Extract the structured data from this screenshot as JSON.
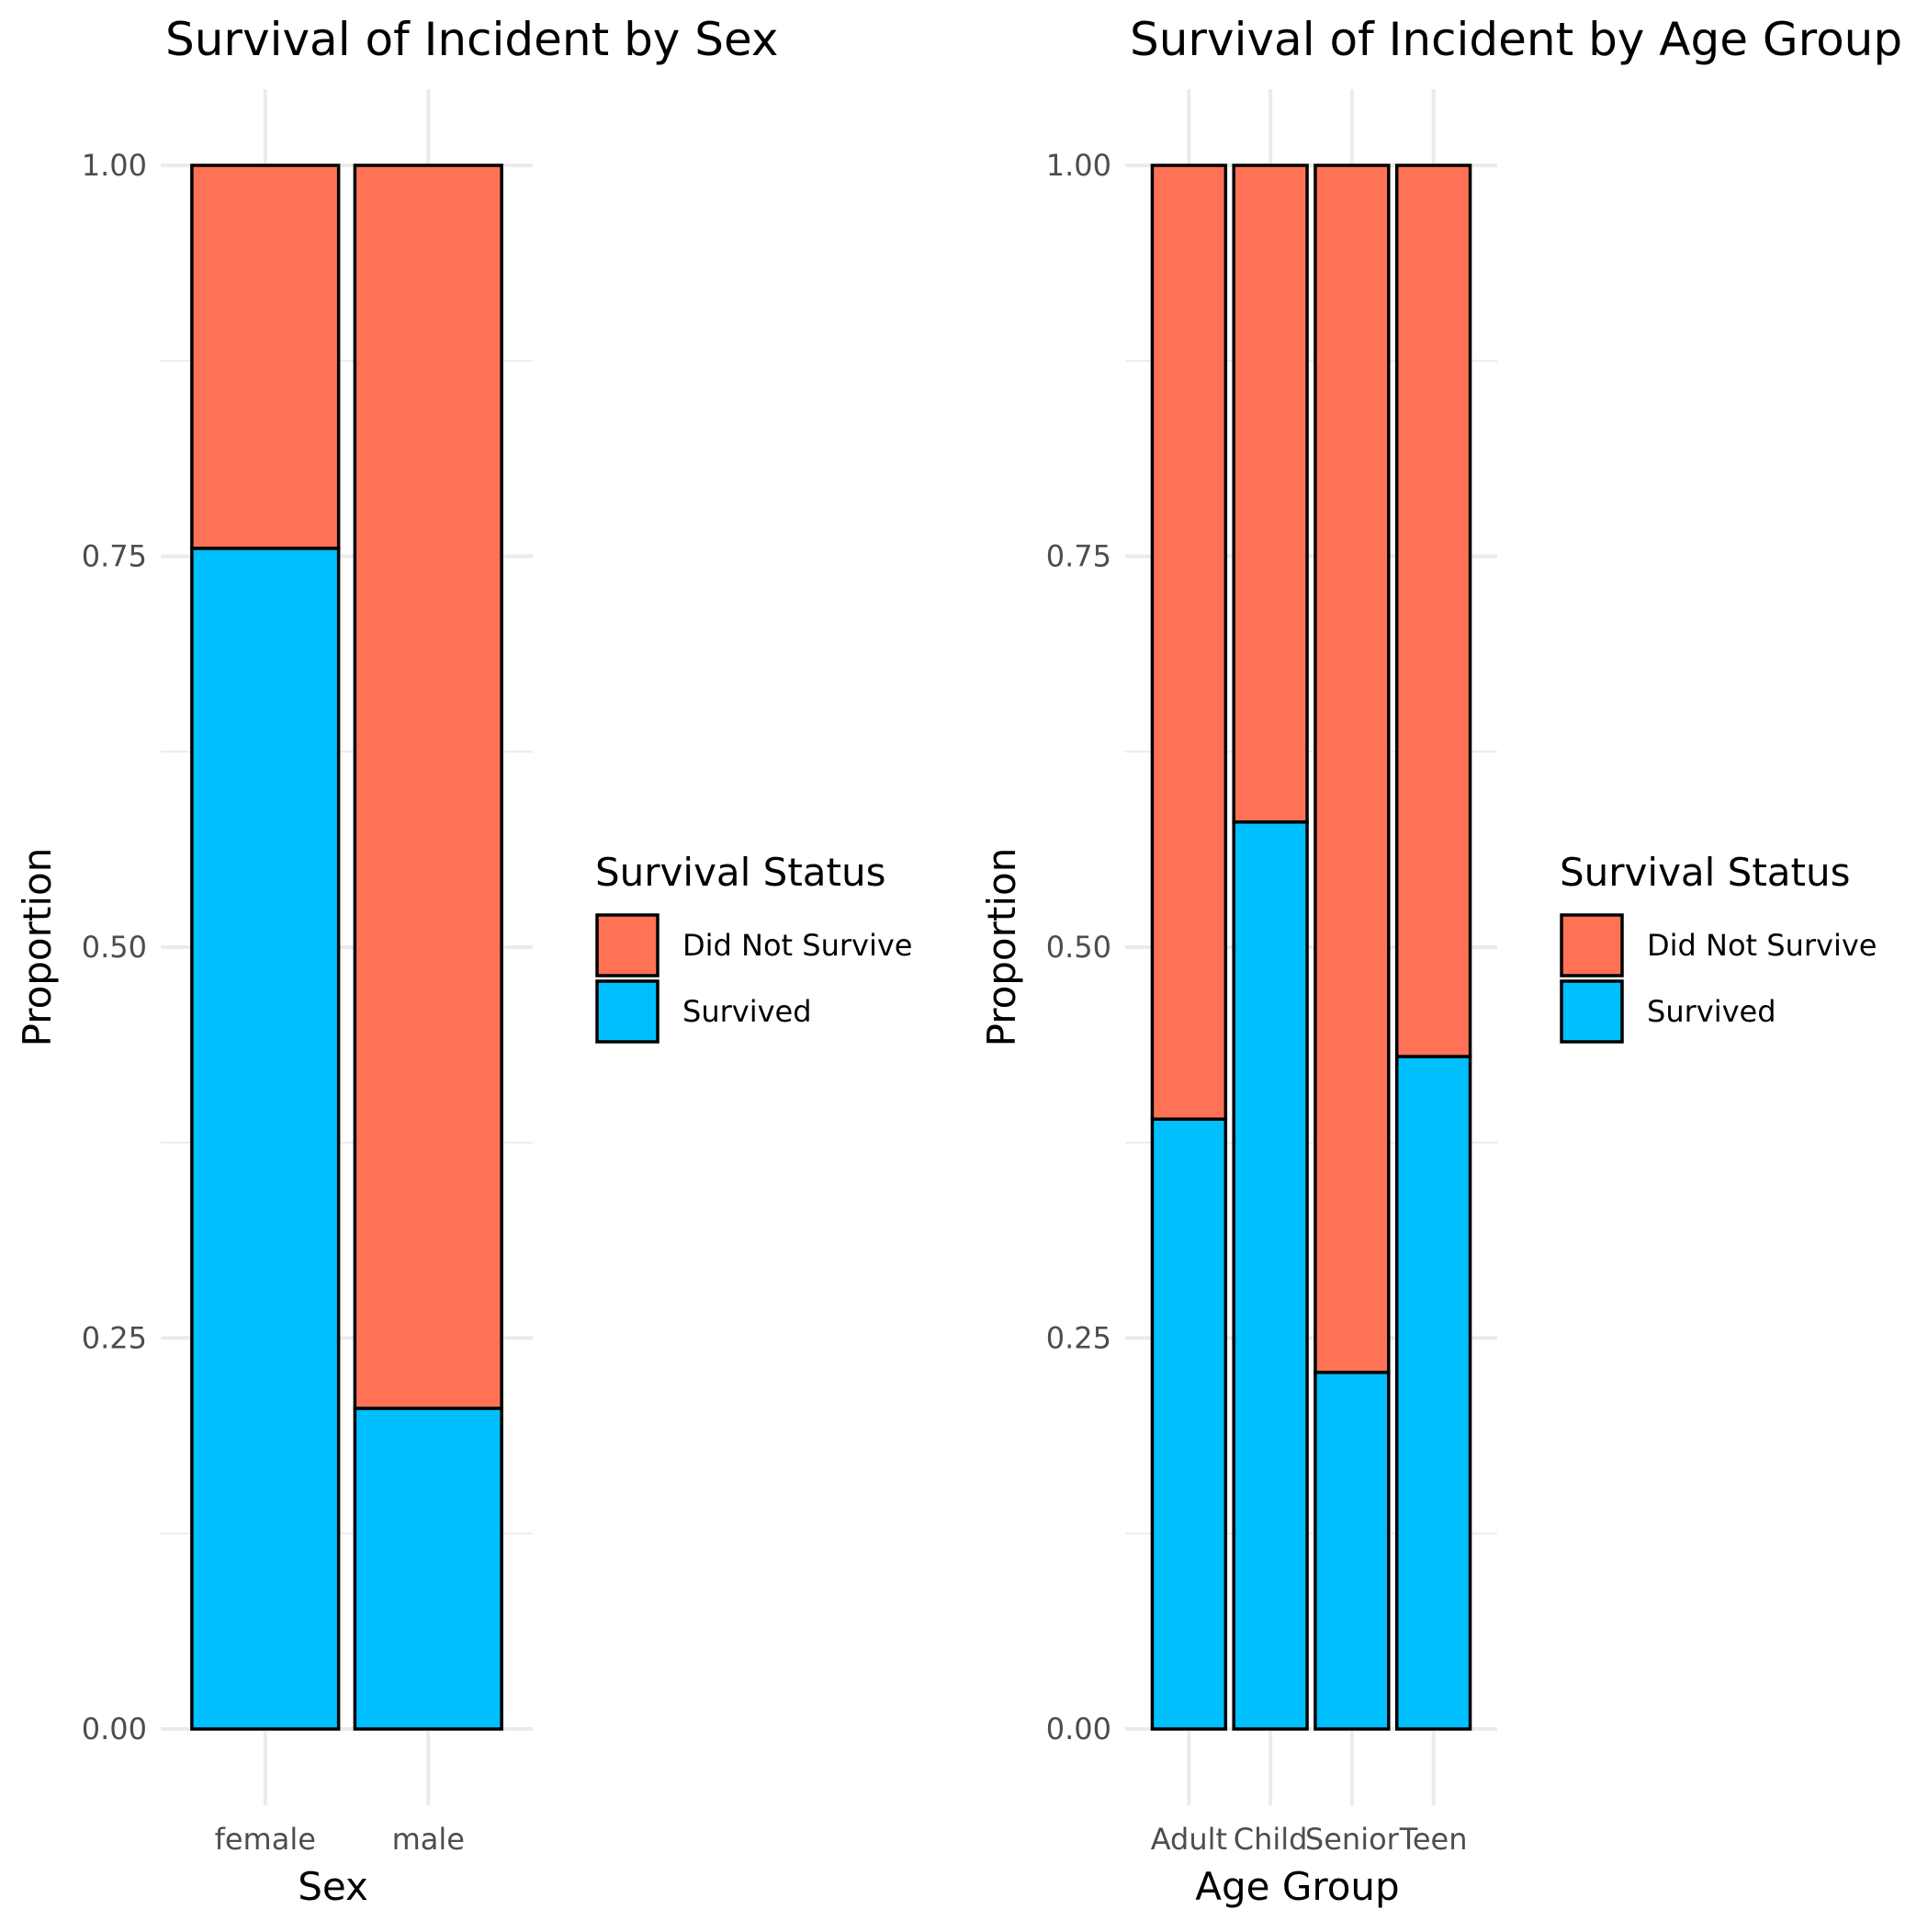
{
  "chart_data": [
    {
      "type": "bar",
      "stacked": true,
      "title": "Survival of Incident by Sex",
      "xlabel": "Sex",
      "ylabel": "Proportion",
      "categories": [
        "female",
        "male"
      ],
      "series": [
        {
          "name": "Survived",
          "values": [
            0.755,
            0.205
          ]
        },
        {
          "name": "Did Not Survive",
          "values": [
            0.245,
            0.795
          ]
        }
      ],
      "ylim": [
        0,
        1
      ],
      "yticks": [
        "0.00",
        "0.25",
        "0.50",
        "0.75",
        "1.00"
      ],
      "grid": true,
      "legend": {
        "title": "Survival Status",
        "position": "right",
        "items": [
          {
            "label": "Did Not Survive",
            "color": "#FF7256"
          },
          {
            "label": "Survived",
            "color": "#00BFFF"
          }
        ]
      }
    },
    {
      "type": "bar",
      "stacked": true,
      "title": "Survival of Incident by Age Group",
      "xlabel": "Age Group",
      "ylabel": "Proportion",
      "categories": [
        "Adult",
        "Child",
        "Senior",
        "Teen"
      ],
      "series": [
        {
          "name": "Survived",
          "values": [
            0.39,
            0.58,
            0.228,
            0.43
          ]
        },
        {
          "name": "Did Not Survive",
          "values": [
            0.61,
            0.42,
            0.772,
            0.57
          ]
        }
      ],
      "ylim": [
        0,
        1
      ],
      "yticks": [
        "0.00",
        "0.25",
        "0.50",
        "0.75",
        "1.00"
      ],
      "grid": true,
      "legend": {
        "title": "Survival Status",
        "position": "right",
        "items": [
          {
            "label": "Did Not Survive",
            "color": "#FF7256"
          },
          {
            "label": "Survived",
            "color": "#00BFFF"
          }
        ]
      }
    }
  ],
  "colors": {
    "survived": "#00BFFF",
    "did_not_survive": "#FF7256",
    "grid": "#EBEBEB",
    "bar_outline": "#000000"
  }
}
